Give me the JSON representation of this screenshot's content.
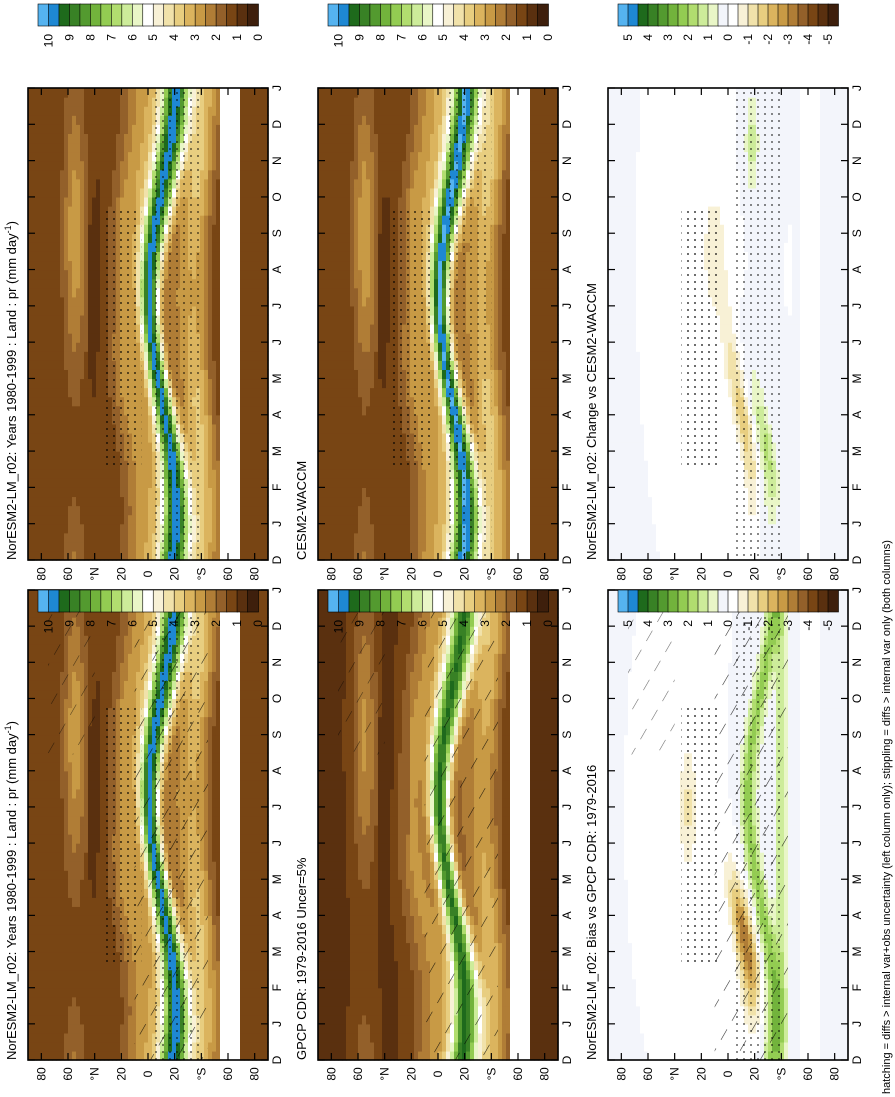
{
  "footnote": "hatching = diffs > internal var+obs uncertainty (left column only); stippling = diffs > internal var only (both columns)",
  "colors": {
    "precip_scale": [
      "#3e1f0c",
      "#5a300f",
      "#784514",
      "#93602a",
      "#b07d36",
      "#c89a45",
      "#dbb45e",
      "#e8ce80",
      "#f1e2aa",
      "#f8f1d6",
      "#ffffff",
      "#e9f6c7",
      "#cdec9a",
      "#b1dd6f",
      "#93cc52",
      "#72b33c",
      "#539a2f",
      "#388125",
      "#1e6a1c",
      "#1e88d3",
      "#55b3f0"
    ],
    "diff_scale": [
      "#3e1f0c",
      "#5a300f",
      "#784514",
      "#93602a",
      "#b07d36",
      "#c89a45",
      "#dbb45e",
      "#e8ce80",
      "#f1e2aa",
      "#f8f1d6",
      "#ffffff",
      "#f3f5fb",
      "#e9f6c7",
      "#cdec9a",
      "#b1dd6f",
      "#93cc52",
      "#72b33c",
      "#539a2f",
      "#388125",
      "#1e6a1c",
      "#1e88d3",
      "#55b3f0"
    ]
  },
  "chart_data": [
    {
      "panel": "top-left",
      "type": "heatmap",
      "title": "NorESM2-LM_r02: Years 1980-1999 : Land : pr (mm day",
      "title_sup": "-1",
      "title_end": ")",
      "x_ticks": [
        "D",
        "J",
        "F",
        "M",
        "A",
        "M",
        "J",
        "J",
        "A",
        "S",
        "O",
        "N",
        "D",
        "J"
      ],
      "y_ticks": [
        "80",
        "60",
        "°N",
        "20",
        "0",
        "20",
        "°S",
        "60",
        "80"
      ],
      "colorbar": [
        "10",
        "9",
        "8",
        "7",
        "6",
        "5",
        "4",
        "3",
        "2",
        "1",
        "0"
      ],
      "ylim": [
        -90,
        90
      ],
      "hatching": true,
      "stippling": true
    },
    {
      "panel": "top-right",
      "type": "heatmap",
      "title": "NorESM2-LM_r02: Years 1980-1999 : Land : pr (mm day",
      "title_sup": "-1",
      "title_end": ")",
      "x_ticks": [
        "D",
        "J",
        "F",
        "M",
        "A",
        "M",
        "J",
        "J",
        "A",
        "S",
        "O",
        "N",
        "D",
        "J"
      ],
      "y_ticks": [
        "80",
        "60",
        "°N",
        "20",
        "0",
        "20",
        "°S",
        "60",
        "80"
      ],
      "colorbar": [
        "10",
        "9",
        "8",
        "7",
        "6",
        "5",
        "4",
        "3",
        "2",
        "1",
        "0"
      ],
      "ylim": [
        -90,
        90
      ],
      "hatching": false,
      "stippling": true
    },
    {
      "panel": "middle-left",
      "type": "heatmap",
      "title": "GPCP CDR: 1979-2016 Uncer=5%",
      "title_sup": "",
      "title_end": "",
      "x_ticks": [
        "D",
        "J",
        "F",
        "M",
        "A",
        "M",
        "J",
        "J",
        "A",
        "S",
        "O",
        "N",
        "D",
        "J"
      ],
      "y_ticks": [
        "80",
        "60",
        "°N",
        "20",
        "0",
        "20",
        "°S",
        "60",
        "80"
      ],
      "colorbar": [
        "10",
        "9",
        "8",
        "7",
        "6",
        "5",
        "4",
        "3",
        "2",
        "1",
        "0"
      ],
      "ylim": [
        -90,
        90
      ],
      "hatching": true,
      "stippling": false
    },
    {
      "panel": "middle-right",
      "type": "heatmap",
      "title": "CESM2-WACCM",
      "title_sup": "",
      "title_end": "",
      "x_ticks": [
        "D",
        "J",
        "F",
        "M",
        "A",
        "M",
        "J",
        "J",
        "A",
        "S",
        "O",
        "N",
        "D",
        "J"
      ],
      "y_ticks": [
        "80",
        "60",
        "°N",
        "20",
        "0",
        "20",
        "°S",
        "60",
        "80"
      ],
      "colorbar": [
        "10",
        "9",
        "8",
        "7",
        "6",
        "5",
        "4",
        "3",
        "2",
        "1",
        "0"
      ],
      "ylim": [
        -90,
        90
      ],
      "hatching": false,
      "stippling": true
    },
    {
      "panel": "bottom-left",
      "type": "heatmap",
      "title": "NorESM2-LM_r02: Bias vs GPCP CDR: 1979-2016",
      "title_sup": "",
      "title_end": "",
      "x_ticks": [
        "D",
        "J",
        "F",
        "M",
        "A",
        "M",
        "J",
        "J",
        "A",
        "S",
        "O",
        "N",
        "D",
        "J"
      ],
      "y_ticks": [
        "80",
        "60",
        "°N",
        "20",
        "0",
        "20",
        "°S",
        "60",
        "80"
      ],
      "colorbar": [
        "5",
        "4",
        "3",
        "2",
        "1",
        "0",
        "-1",
        "-2",
        "-3",
        "-4",
        "-5"
      ],
      "ylim": [
        -90,
        90
      ],
      "hatching": true,
      "stippling": true
    },
    {
      "panel": "bottom-right",
      "type": "heatmap",
      "title": "NorESM2-LM_r02: Change vs CESM2-WACCM",
      "title_sup": "",
      "title_end": "",
      "x_ticks": [
        "D",
        "J",
        "F",
        "M",
        "A",
        "M",
        "J",
        "J",
        "A",
        "S",
        "O",
        "N",
        "D",
        "J"
      ],
      "y_ticks": [
        "80",
        "60",
        "°N",
        "20",
        "0",
        "20",
        "°S",
        "60",
        "80"
      ],
      "colorbar": [
        "5",
        "4",
        "3",
        "2",
        "1",
        "0",
        "-1",
        "-2",
        "-3",
        "-4",
        "-5"
      ],
      "ylim": [
        -90,
        90
      ],
      "hatching": false,
      "stippling": true
    }
  ]
}
